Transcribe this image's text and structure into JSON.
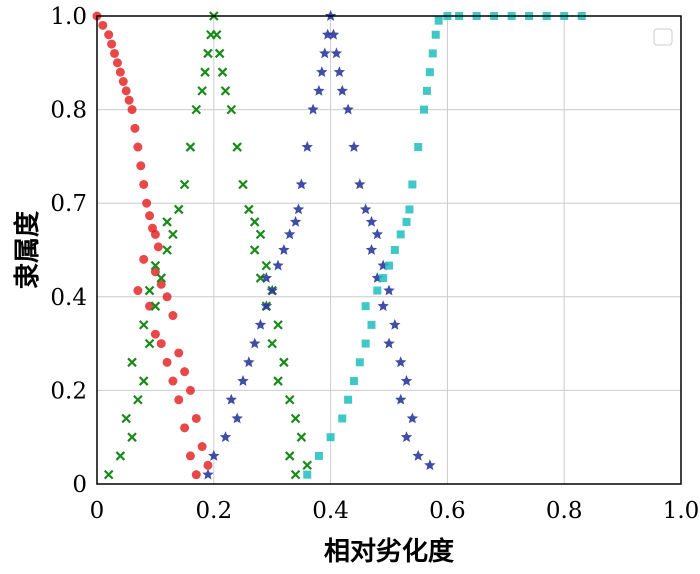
{
  "chart_data": {
    "type": "scatter",
    "title": "",
    "xlabel": "相对劣化度",
    "ylabel": "隶属度",
    "xlim": [
      0,
      1.0
    ],
    "ylim": [
      0,
      1.0
    ],
    "x_ticks": [
      "0",
      "0.2",
      "0.4",
      "0.6",
      "0.8",
      "1.0"
    ],
    "y_ticks": [
      "0",
      "0.2",
      "0.4",
      "0.7",
      "0.8",
      "1.0"
    ],
    "y_tick_values": [
      0,
      0.2,
      0.4,
      0.7,
      0.8,
      1.0
    ],
    "grid": true,
    "legend": "top-right (empty box)",
    "series": [
      {
        "color": "#e31a1c",
        "marker": "circle",
        "points": [
          [
            0.0,
            1.0
          ],
          [
            0.01,
            0.98
          ],
          [
            0.02,
            0.96
          ],
          [
            0.025,
            0.94
          ],
          [
            0.03,
            0.92
          ],
          [
            0.035,
            0.9
          ],
          [
            0.04,
            0.88
          ],
          [
            0.045,
            0.86
          ],
          [
            0.05,
            0.84
          ],
          [
            0.055,
            0.82
          ],
          [
            0.06,
            0.8
          ],
          [
            0.065,
            0.78
          ],
          [
            0.07,
            0.76
          ],
          [
            0.075,
            0.74
          ],
          [
            0.08,
            0.72
          ],
          [
            0.085,
            0.7
          ],
          [
            0.09,
            0.66
          ],
          [
            0.095,
            0.62
          ],
          [
            0.1,
            0.6
          ],
          [
            0.105,
            0.56
          ],
          [
            0.08,
            0.52
          ],
          [
            0.1,
            0.48
          ],
          [
            0.11,
            0.44
          ],
          [
            0.07,
            0.42
          ],
          [
            0.12,
            0.4
          ],
          [
            0.09,
            0.38
          ],
          [
            0.13,
            0.36
          ],
          [
            0.1,
            0.32
          ],
          [
            0.11,
            0.3
          ],
          [
            0.14,
            0.28
          ],
          [
            0.12,
            0.26
          ],
          [
            0.15,
            0.24
          ],
          [
            0.13,
            0.22
          ],
          [
            0.16,
            0.2
          ],
          [
            0.14,
            0.18
          ],
          [
            0.17,
            0.14
          ],
          [
            0.15,
            0.12
          ],
          [
            0.18,
            0.08
          ],
          [
            0.16,
            0.06
          ],
          [
            0.19,
            0.04
          ],
          [
            0.17,
            0.02
          ]
        ]
      },
      {
        "color": "#1a8a1a",
        "marker": "x",
        "points": [
          [
            0.02,
            0.02
          ],
          [
            0.04,
            0.06
          ],
          [
            0.06,
            0.1
          ],
          [
            0.05,
            0.14
          ],
          [
            0.07,
            0.18
          ],
          [
            0.08,
            0.22
          ],
          [
            0.06,
            0.26
          ],
          [
            0.09,
            0.3
          ],
          [
            0.08,
            0.34
          ],
          [
            0.1,
            0.38
          ],
          [
            0.09,
            0.42
          ],
          [
            0.11,
            0.46
          ],
          [
            0.1,
            0.5
          ],
          [
            0.12,
            0.55
          ],
          [
            0.13,
            0.6
          ],
          [
            0.12,
            0.64
          ],
          [
            0.14,
            0.68
          ],
          [
            0.15,
            0.72
          ],
          [
            0.16,
            0.76
          ],
          [
            0.17,
            0.8
          ],
          [
            0.18,
            0.84
          ],
          [
            0.185,
            0.88
          ],
          [
            0.19,
            0.92
          ],
          [
            0.195,
            0.96
          ],
          [
            0.2,
            1.0
          ],
          [
            0.205,
            0.96
          ],
          [
            0.21,
            0.92
          ],
          [
            0.215,
            0.88
          ],
          [
            0.22,
            0.84
          ],
          [
            0.23,
            0.8
          ],
          [
            0.24,
            0.76
          ],
          [
            0.25,
            0.72
          ],
          [
            0.26,
            0.68
          ],
          [
            0.27,
            0.64
          ],
          [
            0.28,
            0.6
          ],
          [
            0.27,
            0.55
          ],
          [
            0.29,
            0.5
          ],
          [
            0.28,
            0.46
          ],
          [
            0.3,
            0.42
          ],
          [
            0.29,
            0.38
          ],
          [
            0.31,
            0.34
          ],
          [
            0.3,
            0.3
          ],
          [
            0.32,
            0.26
          ],
          [
            0.31,
            0.22
          ],
          [
            0.33,
            0.18
          ],
          [
            0.34,
            0.14
          ],
          [
            0.35,
            0.1
          ],
          [
            0.33,
            0.06
          ],
          [
            0.36,
            0.04
          ],
          [
            0.34,
            0.02
          ]
        ]
      },
      {
        "color": "#2b3a9c",
        "marker": "star",
        "points": [
          [
            0.19,
            0.02
          ],
          [
            0.2,
            0.06
          ],
          [
            0.22,
            0.1
          ],
          [
            0.24,
            0.14
          ],
          [
            0.23,
            0.18
          ],
          [
            0.25,
            0.22
          ],
          [
            0.26,
            0.26
          ],
          [
            0.27,
            0.3
          ],
          [
            0.28,
            0.34
          ],
          [
            0.29,
            0.38
          ],
          [
            0.3,
            0.42
          ],
          [
            0.29,
            0.46
          ],
          [
            0.31,
            0.5
          ],
          [
            0.32,
            0.55
          ],
          [
            0.33,
            0.6
          ],
          [
            0.34,
            0.64
          ],
          [
            0.345,
            0.68
          ],
          [
            0.35,
            0.72
          ],
          [
            0.36,
            0.76
          ],
          [
            0.37,
            0.8
          ],
          [
            0.38,
            0.84
          ],
          [
            0.385,
            0.88
          ],
          [
            0.39,
            0.92
          ],
          [
            0.395,
            0.96
          ],
          [
            0.4,
            1.0
          ],
          [
            0.405,
            0.96
          ],
          [
            0.41,
            0.92
          ],
          [
            0.415,
            0.88
          ],
          [
            0.42,
            0.84
          ],
          [
            0.43,
            0.8
          ],
          [
            0.44,
            0.76
          ],
          [
            0.45,
            0.72
          ],
          [
            0.46,
            0.68
          ],
          [
            0.47,
            0.64
          ],
          [
            0.48,
            0.6
          ],
          [
            0.47,
            0.55
          ],
          [
            0.49,
            0.5
          ],
          [
            0.48,
            0.46
          ],
          [
            0.5,
            0.42
          ],
          [
            0.49,
            0.38
          ],
          [
            0.51,
            0.34
          ],
          [
            0.5,
            0.3
          ],
          [
            0.52,
            0.26
          ],
          [
            0.53,
            0.22
          ],
          [
            0.52,
            0.18
          ],
          [
            0.54,
            0.14
          ],
          [
            0.53,
            0.1
          ],
          [
            0.55,
            0.06
          ],
          [
            0.57,
            0.04
          ]
        ]
      },
      {
        "color": "#1fbdbd",
        "marker": "square",
        "points": [
          [
            0.36,
            0.02
          ],
          [
            0.38,
            0.06
          ],
          [
            0.4,
            0.1
          ],
          [
            0.42,
            0.14
          ],
          [
            0.43,
            0.18
          ],
          [
            0.44,
            0.22
          ],
          [
            0.45,
            0.26
          ],
          [
            0.46,
            0.3
          ],
          [
            0.47,
            0.34
          ],
          [
            0.46,
            0.38
          ],
          [
            0.48,
            0.42
          ],
          [
            0.49,
            0.46
          ],
          [
            0.5,
            0.5
          ],
          [
            0.51,
            0.55
          ],
          [
            0.52,
            0.6
          ],
          [
            0.53,
            0.64
          ],
          [
            0.535,
            0.68
          ],
          [
            0.54,
            0.72
          ],
          [
            0.55,
            0.76
          ],
          [
            0.56,
            0.8
          ],
          [
            0.565,
            0.84
          ],
          [
            0.57,
            0.88
          ],
          [
            0.575,
            0.92
          ],
          [
            0.58,
            0.96
          ],
          [
            0.585,
            0.99
          ],
          [
            0.6,
            1.0
          ],
          [
            0.62,
            1.0
          ],
          [
            0.65,
            1.0
          ],
          [
            0.68,
            1.0
          ],
          [
            0.71,
            1.0
          ],
          [
            0.74,
            1.0
          ],
          [
            0.77,
            1.0
          ],
          [
            0.8,
            1.0
          ],
          [
            0.83,
            1.0
          ]
        ]
      }
    ]
  }
}
